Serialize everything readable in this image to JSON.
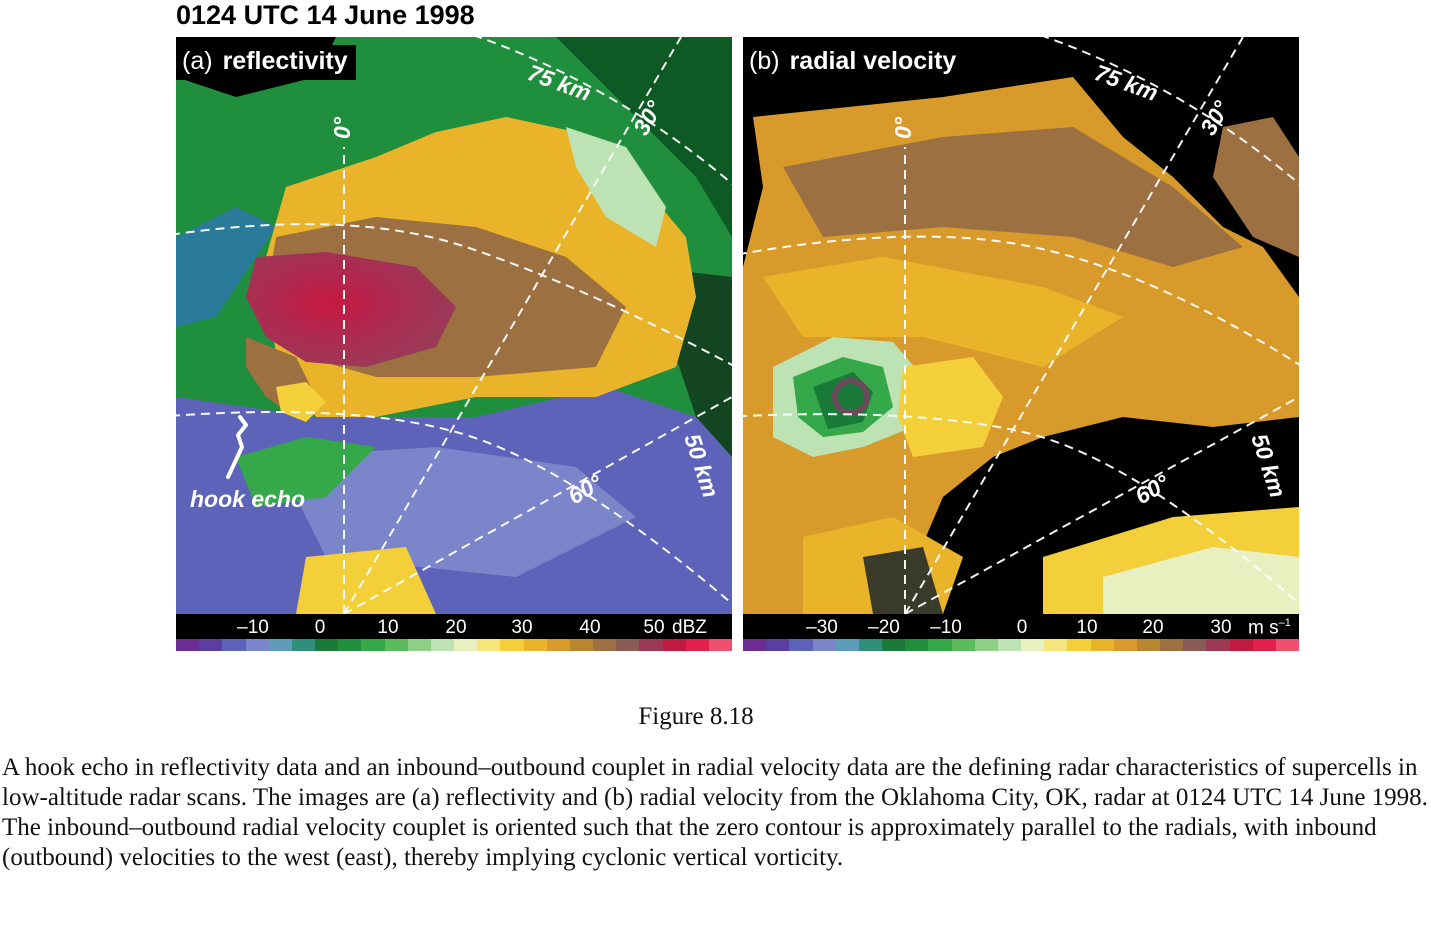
{
  "title": "0124 UTC 14 June 1998",
  "panel_a": {
    "label_letter": "(a)",
    "label_name": "reflectivity",
    "range_labels": [
      "75 km",
      "50 km"
    ],
    "azimuth_labels": [
      "0°",
      "30°",
      "60°"
    ],
    "annotation": "hook echo",
    "colorbar": {
      "ticks": [
        "–10",
        "0",
        "10",
        "20",
        "30",
        "40",
        "50"
      ],
      "unit": "dBZ",
      "colors": [
        "#6b2d8f",
        "#5a3fa0",
        "#5d63b8",
        "#7b85c9",
        "#5e9db8",
        "#2f8f7a",
        "#1a7a3a",
        "#1f8f3d",
        "#35a84a",
        "#5cbb5e",
        "#8ccf85",
        "#bde3b5",
        "#e8f0c0",
        "#f5e57a",
        "#f3cf3a",
        "#eab42a",
        "#d89a2a",
        "#b8862f",
        "#9c7040",
        "#8a5a55",
        "#9c3a55",
        "#c01a40",
        "#e2204a",
        "#f05070"
      ]
    }
  },
  "panel_b": {
    "label_letter": "(b)",
    "label_name": "radial velocity",
    "range_labels": [
      "75 km",
      "50 km"
    ],
    "azimuth_labels": [
      "0°",
      "30°",
      "60°"
    ],
    "colorbar": {
      "ticks": [
        "–30",
        "–20",
        "–10",
        "0",
        "10",
        "20",
        "30"
      ],
      "unit": "m s",
      "unit_exp": "–1",
      "colors": [
        "#6b2d8f",
        "#5a3fa0",
        "#5d63b8",
        "#7b85c9",
        "#5e9db8",
        "#2f8f7a",
        "#1a7a3a",
        "#1f8f3d",
        "#35a84a",
        "#5cbb5e",
        "#8ccf85",
        "#bde3b5",
        "#e8f0c0",
        "#f5e57a",
        "#f3cf3a",
        "#eab42a",
        "#d89a2a",
        "#b8862f",
        "#9c7040",
        "#8a5a55",
        "#9c3a55",
        "#c01a40",
        "#e2204a",
        "#f05070"
      ]
    }
  },
  "figure_label": "Figure 8.18",
  "caption": "A hook echo in reflectivity data and an inbound–outbound couplet in radial velocity data are the defining radar characteristics of supercells in low-altitude radar scans. The images are (a) reflectivity and (b) radial velocity from the Oklahoma City, OK, radar at 0124 UTC 14 June 1998. The inbound–outbound radial velocity couplet is oriented such that the zero contour is approximately parallel to the radials, with inbound (outbound) velocities to the west (east), thereby implying cyclonic vertical vorticity."
}
